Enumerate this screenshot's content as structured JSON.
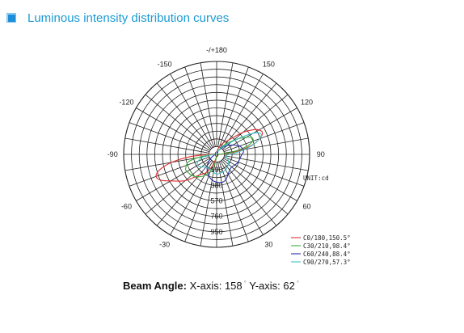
{
  "header": {
    "title": "Luminous intensity distribution curves"
  },
  "chart_data": {
    "type": "polar",
    "title": "Luminous intensity distribution curves",
    "unit_label": "UNIT:cd",
    "angle_labels": [
      {
        "angle": 0,
        "text": "-/+180"
      },
      {
        "angle": 30,
        "text": "150"
      },
      {
        "angle": -30,
        "text": "-150"
      },
      {
        "angle": 60,
        "text": "120"
      },
      {
        "angle": -60,
        "text": "-120"
      },
      {
        "angle": 90,
        "text": "90"
      },
      {
        "angle": -90,
        "text": "-90"
      },
      {
        "angle": 120,
        "text": "60"
      },
      {
        "angle": -120,
        "text": "-60"
      },
      {
        "angle": 150,
        "text": "30"
      },
      {
        "angle": -150,
        "text": "-30"
      }
    ],
    "radial_ticks": [
      0,
      190,
      380,
      570,
      760,
      950
    ],
    "radial_max": 1140,
    "series": [
      {
        "name": "C0/180,150.5°",
        "color": "#e03030",
        "points": [
          [
            0,
            0
          ],
          [
            15,
            80
          ],
          [
            30,
            160
          ],
          [
            40,
            230
          ],
          [
            45,
            300
          ],
          [
            50,
            420
          ],
          [
            55,
            520
          ],
          [
            60,
            600
          ],
          [
            65,
            620
          ],
          [
            70,
            560
          ],
          [
            75,
            460
          ],
          [
            80,
            300
          ],
          [
            85,
            150
          ],
          [
            90,
            40
          ],
          [
            95,
            10
          ],
          [
            180,
            20
          ],
          [
            -170,
            50
          ],
          [
            -160,
            150
          ],
          [
            -150,
            260
          ],
          [
            -140,
            330
          ],
          [
            -130,
            500
          ],
          [
            -120,
            650
          ],
          [
            -115,
            750
          ],
          [
            -110,
            790
          ],
          [
            -105,
            720
          ],
          [
            -100,
            560
          ],
          [
            -95,
            330
          ],
          [
            -90,
            100
          ],
          [
            -80,
            30
          ],
          [
            0,
            0
          ]
        ]
      },
      {
        "name": "C30/210,98.4°",
        "color": "#3ab03a",
        "points": [
          [
            0,
            0
          ],
          [
            20,
            50
          ],
          [
            40,
            160
          ],
          [
            50,
            260
          ],
          [
            55,
            340
          ],
          [
            60,
            420
          ],
          [
            65,
            480
          ],
          [
            70,
            470
          ],
          [
            75,
            380
          ],
          [
            80,
            240
          ],
          [
            85,
            100
          ],
          [
            90,
            30
          ],
          [
            180,
            30
          ],
          [
            -170,
            110
          ],
          [
            -160,
            220
          ],
          [
            -150,
            300
          ],
          [
            -140,
            360
          ],
          [
            -130,
            400
          ],
          [
            -120,
            420
          ],
          [
            -115,
            420
          ],
          [
            -105,
            360
          ],
          [
            -100,
            240
          ],
          [
            -95,
            110
          ],
          [
            -90,
            30
          ],
          [
            0,
            0
          ]
        ]
      },
      {
        "name": "C60/240,88.4°",
        "color": "#2832a8",
        "points": [
          [
            0,
            0
          ],
          [
            20,
            40
          ],
          [
            40,
            110
          ],
          [
            50,
            170
          ],
          [
            60,
            230
          ],
          [
            70,
            300
          ],
          [
            80,
            330
          ],
          [
            85,
            330
          ],
          [
            90,
            310
          ],
          [
            100,
            290
          ],
          [
            110,
            280
          ],
          [
            120,
            260
          ],
          [
            130,
            240
          ],
          [
            140,
            250
          ],
          [
            150,
            280
          ],
          [
            160,
            330
          ],
          [
            170,
            350
          ],
          [
            180,
            340
          ],
          [
            -170,
            320
          ],
          [
            -160,
            280
          ],
          [
            -150,
            230
          ],
          [
            -140,
            180
          ],
          [
            -130,
            120
          ],
          [
            -120,
            70
          ],
          [
            -110,
            35
          ],
          [
            -100,
            15
          ],
          [
            -90,
            5
          ],
          [
            0,
            0
          ]
        ]
      },
      {
        "name": "C90/270,57.3°",
        "color": "#40c0c8",
        "points": [
          [
            0,
            0
          ],
          [
            30,
            80
          ],
          [
            45,
            170
          ],
          [
            52,
            280
          ],
          [
            57,
            420
          ],
          [
            60,
            520
          ],
          [
            63,
            580
          ],
          [
            66,
            600
          ],
          [
            70,
            560
          ],
          [
            75,
            470
          ],
          [
            80,
            350
          ],
          [
            85,
            240
          ],
          [
            90,
            160
          ],
          [
            100,
            110
          ],
          [
            120,
            170
          ],
          [
            150,
            220
          ],
          [
            180,
            240
          ],
          [
            -160,
            200
          ],
          [
            -140,
            200
          ],
          [
            -130,
            240
          ],
          [
            -120,
            270
          ],
          [
            -110,
            240
          ],
          [
            -100,
            160
          ],
          [
            -95,
            60
          ],
          [
            -90,
            10
          ],
          [
            0,
            0
          ]
        ]
      }
    ]
  },
  "beam": {
    "label": "Beam Angle:",
    "x_text": "X-axis: 158",
    "y_text": "Y-axis: 62",
    "degree_mark": "°"
  }
}
